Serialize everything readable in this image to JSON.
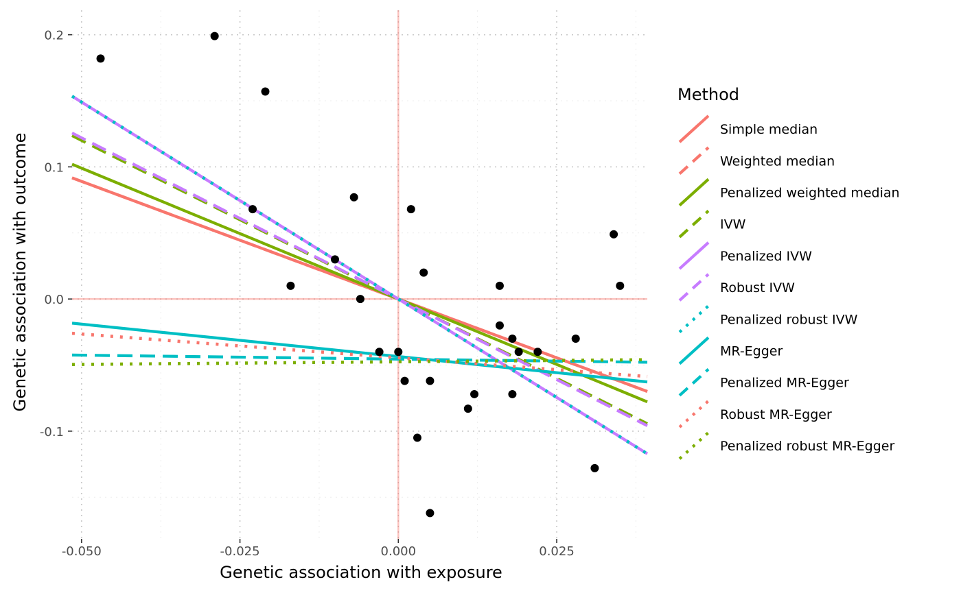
{
  "chart_data": {
    "type": "scatter",
    "xlabel": "Genetic association with exposure",
    "ylabel": "Genetic association with outcome",
    "xlim": [
      -0.0515,
      0.0393
    ],
    "ylim": [
      -0.1815,
      0.2185
    ],
    "x_ticks": [
      -0.05,
      -0.025,
      0.0,
      0.025
    ],
    "x_tick_labels": [
      "-0.050",
      "-0.025",
      "0.000",
      "0.025"
    ],
    "y_ticks": [
      -0.1,
      0.0,
      0.1,
      0.2
    ],
    "y_tick_labels": [
      "-0.1",
      "0.0",
      "0.1",
      "0.2"
    ],
    "grid": true,
    "reference_lines": {
      "x": 0.0,
      "y": 0.0,
      "color": "#F8766D"
    },
    "points": [
      {
        "x": -0.047,
        "y": 0.182
      },
      {
        "x": -0.029,
        "y": 0.199
      },
      {
        "x": -0.021,
        "y": 0.157
      },
      {
        "x": -0.023,
        "y": 0.068
      },
      {
        "x": -0.017,
        "y": 0.01
      },
      {
        "x": -0.01,
        "y": 0.03
      },
      {
        "x": -0.007,
        "y": 0.077
      },
      {
        "x": -0.006,
        "y": 0.0
      },
      {
        "x": -0.003,
        "y": -0.04
      },
      {
        "x": 0.0,
        "y": -0.04
      },
      {
        "x": 0.001,
        "y": -0.062
      },
      {
        "x": 0.002,
        "y": 0.068
      },
      {
        "x": 0.003,
        "y": -0.105
      },
      {
        "x": 0.004,
        "y": 0.02
      },
      {
        "x": 0.005,
        "y": -0.062
      },
      {
        "x": 0.005,
        "y": -0.162
      },
      {
        "x": 0.011,
        "y": -0.083
      },
      {
        "x": 0.012,
        "y": -0.072
      },
      {
        "x": 0.016,
        "y": 0.01
      },
      {
        "x": 0.016,
        "y": -0.02
      },
      {
        "x": 0.018,
        "y": -0.03
      },
      {
        "x": 0.018,
        "y": -0.072
      },
      {
        "x": 0.019,
        "y": -0.04
      },
      {
        "x": 0.022,
        "y": -0.04
      },
      {
        "x": 0.028,
        "y": -0.03
      },
      {
        "x": 0.031,
        "y": -0.128
      },
      {
        "x": 0.034,
        "y": 0.049
      },
      {
        "x": 0.035,
        "y": 0.01
      }
    ],
    "series": [
      {
        "name": "Simple median",
        "color": "#F8766D",
        "linetype": "solid",
        "intercept": 0.0,
        "slope": -1.78
      },
      {
        "name": "Weighted median",
        "color": "#F8766D",
        "linetype": "dashed",
        "intercept": 0.0,
        "slope": -1.78
      },
      {
        "name": "Penalized weighted median",
        "color": "#7CAE00",
        "linetype": "solid",
        "intercept": 0.0,
        "slope": -1.98
      },
      {
        "name": "IVW",
        "color": "#7CAE00",
        "linetype": "dashed",
        "intercept": 0.0,
        "slope": -2.4
      },
      {
        "name": "Penalized IVW",
        "color": "#C77CFF",
        "linetype": "solid",
        "intercept": 0.0,
        "slope": -2.98
      },
      {
        "name": "Robust IVW",
        "color": "#C77CFF",
        "linetype": "dashed",
        "intercept": 0.0,
        "slope": -2.44
      },
      {
        "name": "Penalized robust IVW",
        "color": "#00BFC4",
        "linetype": "dotted",
        "intercept": 0.0,
        "slope": -2.98
      },
      {
        "name": "MR-Egger",
        "color": "#00BFC4",
        "linetype": "solid",
        "intercept": -0.0435,
        "slope": -0.49
      },
      {
        "name": "Penalized MR-Egger",
        "color": "#00BFC4",
        "linetype": "dashed",
        "intercept": -0.0455,
        "slope": -0.06
      },
      {
        "name": "Robust MR-Egger",
        "color": "#F8766D",
        "linetype": "dotted",
        "intercept": -0.0445,
        "slope": -0.36
      },
      {
        "name": "Penalized robust MR-Egger",
        "color": "#7CAE00",
        "linetype": "dotted",
        "intercept": -0.0475,
        "slope": 0.04
      }
    ],
    "legend": {
      "title": "Method",
      "position": "right"
    }
  }
}
